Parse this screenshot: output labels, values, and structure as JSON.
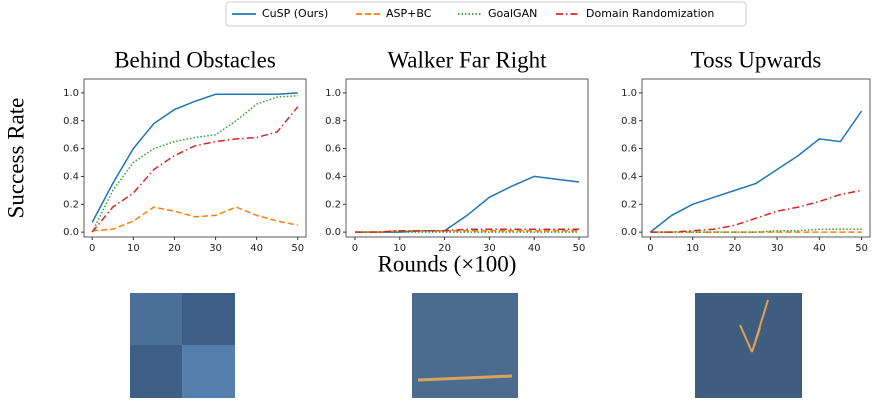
{
  "chart_data": [
    {
      "type": "line",
      "title": "Behind Obstacles",
      "ylabel": "Success Rate",
      "x": [
        0,
        5,
        10,
        15,
        20,
        25,
        30,
        35,
        40,
        45,
        50
      ],
      "xlim": [
        -2,
        52
      ],
      "ylim": [
        -0.035,
        1.1
      ],
      "xticks": [
        0,
        10,
        20,
        30,
        40,
        50
      ],
      "yticks": [
        {
          "value": 0,
          "label": "0.0"
        },
        0.2,
        0.4,
        0.6,
        0.8,
        {
          "value": 1,
          "label": "1.0"
        }
      ],
      "series": [
        {
          "name": "CuSP (Ours)",
          "color": "#1f77b4",
          "dash": "solid",
          "values": [
            0.07,
            0.35,
            0.6,
            0.78,
            0.88,
            0.94,
            0.99,
            0.99,
            0.99,
            0.99,
            1.0
          ]
        },
        {
          "name": "ASP+BC",
          "color": "#ff7f0e",
          "dash": "dashed",
          "values": [
            0.01,
            0.02,
            0.08,
            0.18,
            0.15,
            0.11,
            0.12,
            0.18,
            0.12,
            0.08,
            0.05
          ]
        },
        {
          "name": "GoalGAN",
          "color": "#2ca02c",
          "dash": "dotted",
          "values": [
            0.0,
            0.3,
            0.5,
            0.6,
            0.65,
            0.68,
            0.7,
            0.8,
            0.92,
            0.97,
            0.98
          ]
        },
        {
          "name": "Domain Randomization",
          "color": "#d62728",
          "dash": "dashdot",
          "values": [
            0.0,
            0.18,
            0.28,
            0.45,
            0.55,
            0.62,
            0.65,
            0.67,
            0.68,
            0.72,
            0.9
          ]
        }
      ]
    },
    {
      "type": "line",
      "title": "Walker Far Right",
      "xlabel": "Rounds (×100)",
      "x": [
        0,
        5,
        10,
        15,
        20,
        25,
        30,
        35,
        40,
        45,
        50
      ],
      "xlim": [
        -2,
        52
      ],
      "ylim": [
        -0.035,
        1.1
      ],
      "xticks": [
        0,
        10,
        20,
        30,
        40,
        50
      ],
      "yticks": [
        {
          "value": 0,
          "label": "0.0"
        },
        0.2,
        0.4,
        0.6,
        0.8,
        {
          "value": 1,
          "label": "1.0"
        }
      ],
      "series": [
        {
          "name": "CuSP (Ours)",
          "color": "#1f77b4",
          "dash": "solid",
          "values": [
            0.0,
            0.0,
            0.0,
            0.01,
            0.01,
            0.12,
            0.25,
            0.33,
            0.4,
            0.38,
            0.36
          ]
        },
        {
          "name": "ASP+BC",
          "color": "#ff7f0e",
          "dash": "dashed",
          "values": [
            0.0,
            0.0,
            0.01,
            0.01,
            0.01,
            0.01,
            0.01,
            0.01,
            0.01,
            0.01,
            0.01
          ]
        },
        {
          "name": "GoalGAN",
          "color": "#2ca02c",
          "dash": "dotted",
          "values": [
            0.0,
            0.0,
            0.0,
            0.0,
            0.0,
            0.0,
            0.0,
            0.0,
            0.0,
            0.0,
            0.0
          ]
        },
        {
          "name": "Domain Randomization",
          "color": "#d62728",
          "dash": "dashdot",
          "values": [
            0.0,
            0.0,
            0.01,
            0.01,
            0.01,
            0.02,
            0.02,
            0.02,
            0.02,
            0.02,
            0.02
          ]
        }
      ]
    },
    {
      "type": "line",
      "title": "Toss Upwards",
      "x": [
        0,
        5,
        10,
        15,
        20,
        25,
        30,
        35,
        40,
        45,
        50
      ],
      "xlim": [
        -2,
        52
      ],
      "ylim": [
        -0.035,
        1.1
      ],
      "xticks": [
        0,
        10,
        20,
        30,
        40,
        50
      ],
      "yticks": [
        {
          "value": 0,
          "label": "0.0"
        },
        0.2,
        0.4,
        0.6,
        0.8,
        {
          "value": 1,
          "label": "1.0"
        }
      ],
      "series": [
        {
          "name": "CuSP (Ours)",
          "color": "#1f77b4",
          "dash": "solid",
          "values": [
            0.0,
            0.12,
            0.2,
            0.25,
            0.3,
            0.35,
            0.45,
            0.55,
            0.67,
            0.65,
            0.87
          ]
        },
        {
          "name": "ASP+BC",
          "color": "#ff7f0e",
          "dash": "dashed",
          "values": [
            0.0,
            0.0,
            0.0,
            0.0,
            0.0,
            0.0,
            0.0,
            0.0,
            0.0,
            0.0,
            0.0
          ]
        },
        {
          "name": "GoalGAN",
          "color": "#2ca02c",
          "dash": "dotted",
          "values": [
            0.0,
            0.0,
            0.0,
            0.0,
            0.0,
            0.0,
            0.01,
            0.01,
            0.02,
            0.02,
            0.02
          ]
        },
        {
          "name": "Domain Randomization",
          "color": "#d62728",
          "dash": "dashdot",
          "values": [
            0.0,
            0.0,
            0.01,
            0.02,
            0.05,
            0.1,
            0.15,
            0.18,
            0.22,
            0.27,
            0.3
          ]
        }
      ]
    }
  ]
}
